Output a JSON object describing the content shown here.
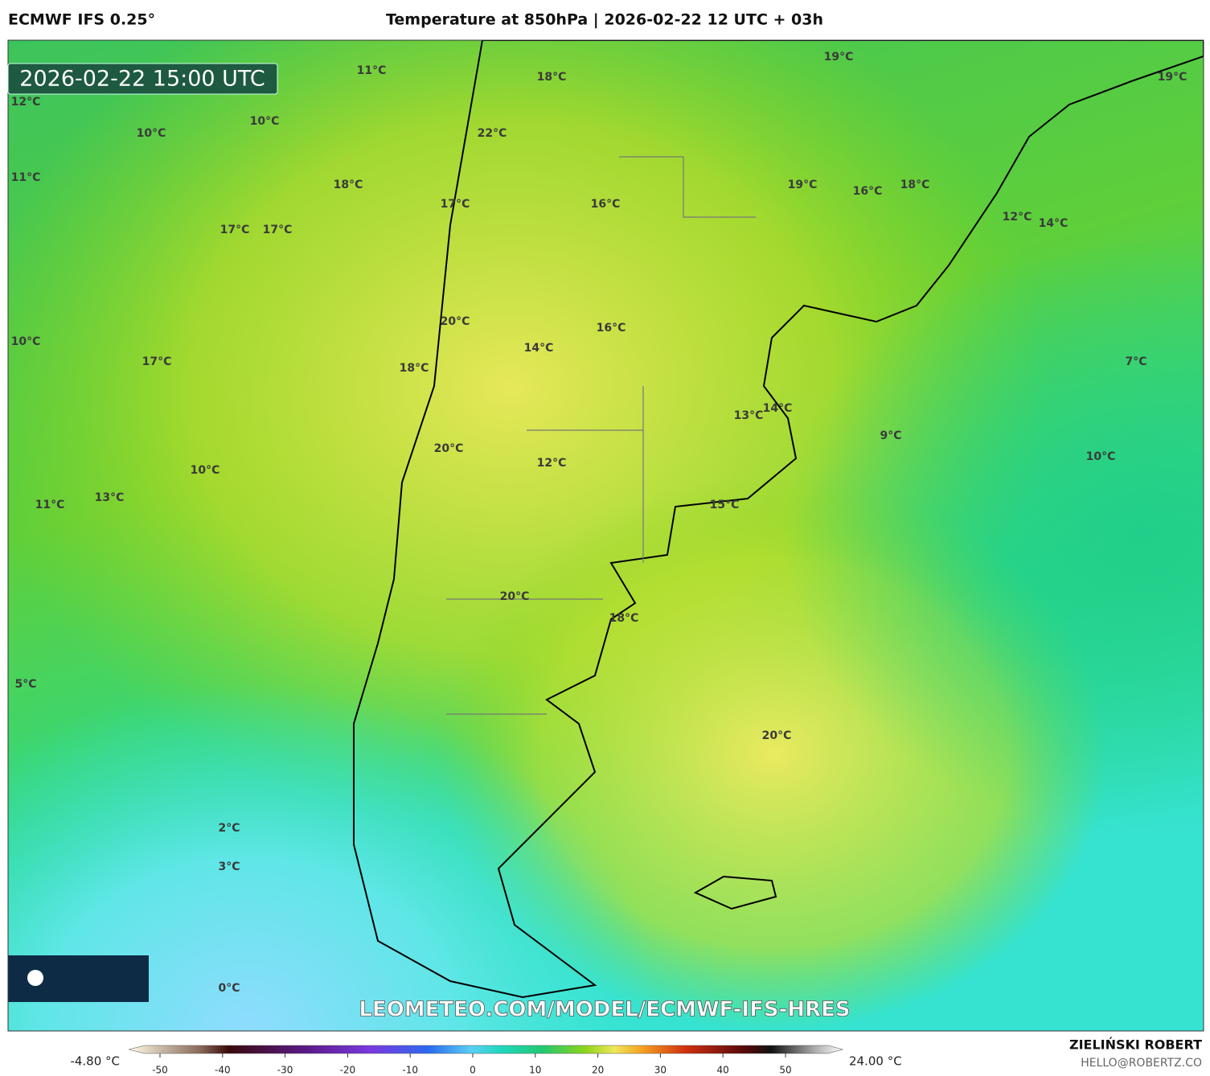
{
  "header": {
    "model": "ECMWF IFS 0.25°",
    "title": "Temperature at 850hPa | 2026-02-22 12 UTC + 03h"
  },
  "timestamp": "2026-02-22 15:00 UTC",
  "map_labels": [
    "11°C",
    "12°C",
    "10°C",
    "10°C",
    "11°C",
    "18°C",
    "17°C",
    "22°C",
    "18°C",
    "19°C",
    "19°C",
    "16°C",
    "19°C",
    "16°C",
    "18°C",
    "12°C",
    "14°C",
    "17°C",
    "17°C",
    "10°C",
    "17°C",
    "20°C",
    "18°C",
    "16°C",
    "14°C",
    "7°C",
    "13°C",
    "14°C",
    "9°C",
    "10°C",
    "20°C",
    "12°C",
    "10°C",
    "11°C",
    "13°C",
    "15°C",
    "20°C",
    "18°C",
    "5°C",
    "20°C",
    "2°C",
    "3°C",
    "0°C"
  ],
  "watermark": "LEOMETEO.COM/MODEL/ECMWF-IFS-HRES",
  "colorbar": {
    "min_label": "-4.80 °C",
    "max_label": "24.00 °C",
    "ticks": [
      -50,
      -40,
      -30,
      -20,
      -10,
      0,
      10,
      20,
      30,
      40,
      50
    ]
  },
  "footer": {
    "author": "ZIELIŃSKI ROBERT",
    "email": "HELLO@ROBERTZ.CO"
  }
}
